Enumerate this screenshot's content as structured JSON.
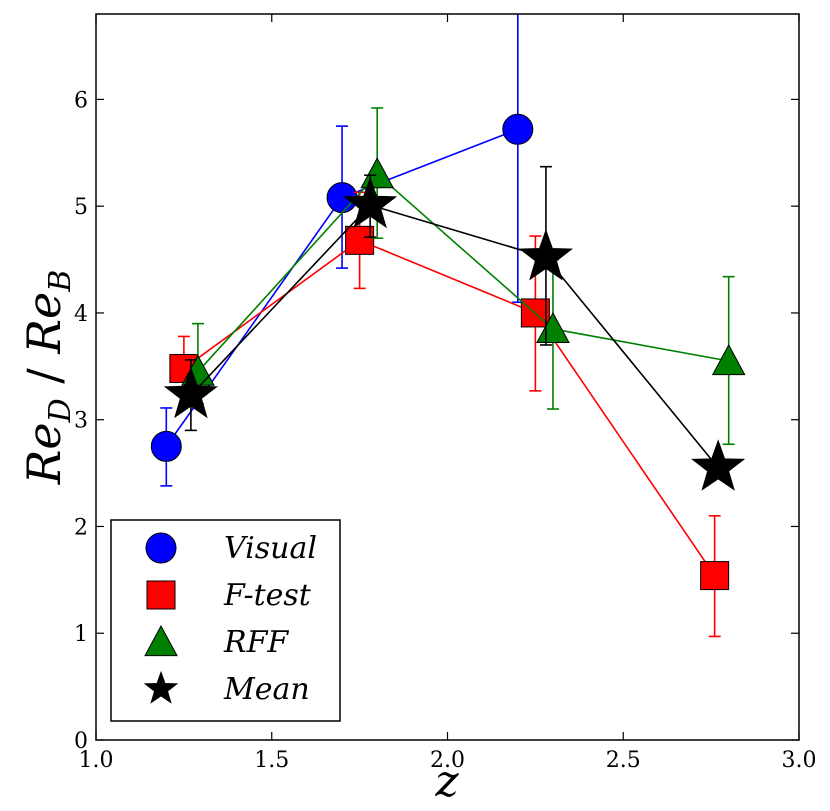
{
  "chart_data": {
    "type": "scatter",
    "title": "",
    "xlabel": "z",
    "ylabel_parts": {
      "numerator": "Re",
      "numerator_sub": "D",
      "separator": " / ",
      "denominator": "Re",
      "denominator_sub": "B"
    },
    "xlim": [
      1.0,
      3.0
    ],
    "ylim": [
      0,
      6.8
    ],
    "xticks": [
      "1.0",
      "1.5",
      "2.0",
      "2.5",
      "3.0"
    ],
    "yticks": [
      "0",
      "1",
      "2",
      "3",
      "4",
      "5",
      "6"
    ],
    "grid": false,
    "legend_position": "bottom-left",
    "series": [
      {
        "name": "Visual",
        "marker": "circle",
        "color": "#0000ff",
        "x": [
          1.2,
          1.7,
          2.2
        ],
        "y": [
          2.75,
          5.08,
          5.72
        ],
        "err_low": [
          0.37,
          0.66,
          1.62
        ],
        "err_high": [
          0.36,
          0.67,
          1.3
        ]
      },
      {
        "name": "F-test",
        "marker": "square",
        "color": "#ff0000",
        "x": [
          1.25,
          1.75,
          2.25,
          2.76
        ],
        "y": [
          3.48,
          4.68,
          4.0,
          1.54
        ],
        "err_low": [
          0.23,
          0.45,
          0.73,
          0.57
        ],
        "err_high": [
          0.3,
          0.45,
          0.72,
          0.56
        ]
      },
      {
        "name": "RFF",
        "marker": "triangle",
        "color": "#008000",
        "x": [
          1.29,
          1.8,
          2.3,
          2.8
        ],
        "y": [
          3.45,
          5.3,
          3.85,
          3.55
        ],
        "err_low": [
          0.3,
          0.6,
          0.75,
          0.78
        ],
        "err_high": [
          0.45,
          0.62,
          0.65,
          0.79
        ]
      },
      {
        "name": "Mean",
        "marker": "star",
        "color": "#000000",
        "x": [
          1.27,
          1.78,
          2.28,
          2.77
        ],
        "y": [
          3.23,
          5.01,
          4.52,
          2.55
        ],
        "err_low": [
          0.33,
          0.3,
          0.82,
          0.0
        ],
        "err_high": [
          0.33,
          0.28,
          0.85,
          0.0
        ]
      }
    ]
  }
}
